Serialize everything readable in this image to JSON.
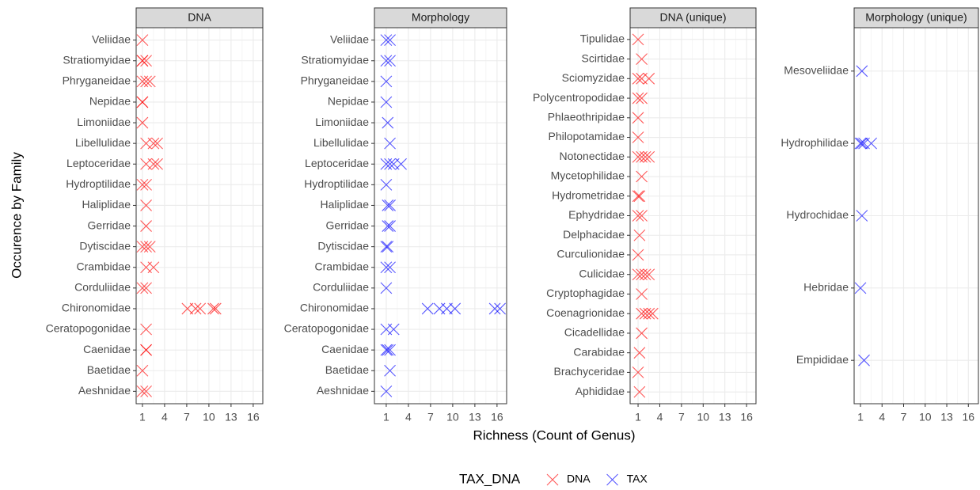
{
  "figure": {
    "xlabel": "Richness (Count of Genus)",
    "ylabel": "Occurence by Family",
    "legend_title": "TAX_DNA"
  },
  "chart_data": [
    {
      "type": "scatter",
      "title": "DNA",
      "xlim": [
        0.15,
        17.3
      ],
      "xticks": [
        1,
        4,
        7,
        10,
        13,
        16
      ],
      "grid": true,
      "categories": [
        "Veliidae",
        "Stratiomyidae",
        "Phryganeidae",
        "Nepidae",
        "Limoniidae",
        "Libellulidae",
        "Leptoceridae",
        "Hydroptilidae",
        "Haliplidae",
        "Gerridae",
        "Dytiscidae",
        "Crambidae",
        "Corduliidae",
        "Chironomidae",
        "Ceratopogonidae",
        "Caenidae",
        "Baetidae",
        "Aeshnidae"
      ],
      "series": [
        {
          "name": "DNA",
          "color": "#ff0000",
          "values": [
            [
              1
            ],
            [
              1,
              1,
              1.5
            ],
            [
              1,
              1.5,
              2
            ],
            [
              1,
              1
            ],
            [
              1
            ],
            [
              1.5,
              2.5,
              3
            ],
            [
              1.5,
              2.5,
              3
            ],
            [
              1,
              1.5
            ],
            [
              1.5
            ],
            [
              1.5
            ],
            [
              1,
              1.5,
              2
            ],
            [
              1.5,
              2.5
            ],
            [
              1,
              1.5
            ],
            [
              7.1,
              8.2,
              8.8,
              10.6,
              10.9
            ],
            [
              1.5
            ],
            [
              1.5,
              1.5
            ],
            [
              1
            ],
            [
              1,
              1.5
            ]
          ]
        }
      ]
    },
    {
      "type": "scatter",
      "title": "Morphology",
      "xlim": [
        -0.6,
        17.3
      ],
      "xticks": [
        1,
        4,
        7,
        10,
        13,
        16
      ],
      "grid": true,
      "categories": [
        "Veliidae",
        "Stratiomyidae",
        "Phryganeidae",
        "Nepidae",
        "Limoniidae",
        "Libellulidae",
        "Leptoceridae",
        "Hydroptilidae",
        "Haliplidae",
        "Gerridae",
        "Dytiscidae",
        "Crambidae",
        "Corduliidae",
        "Chironomidae",
        "Ceratopogonidae",
        "Caenidae",
        "Baetidae",
        "Aeshnidae"
      ],
      "series": [
        {
          "name": "TAX",
          "color": "#0000ff",
          "values": [
            [
              1,
              1.5
            ],
            [
              1,
              1.5
            ],
            [
              1
            ],
            [
              1
            ],
            [
              1.2
            ],
            [
              1.5
            ],
            [
              1,
              1.5,
              2,
              3
            ],
            [
              1
            ],
            [
              1.2,
              1.5
            ],
            [
              1.2,
              1.5
            ],
            [
              1,
              1.2
            ],
            [
              1,
              1.5
            ],
            [
              1
            ],
            [
              6.6,
              8.2,
              9.2,
              10.3,
              15.7,
              16.4
            ],
            [
              1,
              2
            ],
            [
              1,
              1.2,
              1.5
            ],
            [
              1.5
            ],
            [
              1
            ]
          ]
        }
      ]
    },
    {
      "type": "scatter",
      "title": "DNA (unique)",
      "xlim": [
        -0.1,
        17.3
      ],
      "xticks": [
        1,
        4,
        7,
        10,
        13,
        16
      ],
      "grid": true,
      "categories": [
        "Tipulidae",
        "Scirtidae",
        "Sciomyzidae",
        "Polycentropodidae",
        "Phlaeothripidae",
        "Philopotamidae",
        "Notonectidae",
        "Mycetophilidae",
        "Hydrometridae",
        "Ephydridae",
        "Delphacidae",
        "Curculionidae",
        "Culicidae",
        "Cryptophagidae",
        "Coenagrionidae",
        "Cicadellidae",
        "Carabidae",
        "Brachyceridae",
        "Aphididae"
      ],
      "series": [
        {
          "name": "DNA",
          "color": "#ff0000",
          "values": [
            [
              1
            ],
            [
              1.5
            ],
            [
              1,
              1.5,
              2.5
            ],
            [
              1,
              1.5
            ],
            [
              1
            ],
            [
              1
            ],
            [
              1,
              1.5,
              2,
              2.5
            ],
            [
              1.5
            ],
            [
              1,
              1.2
            ],
            [
              1,
              1.5
            ],
            [
              1.2
            ],
            [
              1
            ],
            [
              1,
              1.5,
              2,
              2.5
            ],
            [
              1.5
            ],
            [
              1.5,
              2,
              2.5,
              3
            ],
            [
              1.5
            ],
            [
              1.2
            ],
            [
              1
            ],
            [
              1.2
            ]
          ]
        }
      ]
    },
    {
      "type": "scatter",
      "title": "Morphology (unique)",
      "xlim": [
        0.12,
        17.4
      ],
      "xticks": [
        1,
        4,
        7,
        10,
        13,
        16
      ],
      "grid": true,
      "categories": [
        "Mesoveliidae",
        "Hydrophilidae",
        "Hydrochidae",
        "Hebridae",
        "Empididae"
      ],
      "series": [
        {
          "name": "TAX",
          "color": "#0000ff",
          "values": [
            [
              1.2
            ],
            [
              1,
              1.2,
              1.5,
              2.5
            ],
            [
              1.2
            ],
            [
              1
            ],
            [
              1.5
            ]
          ]
        }
      ]
    }
  ]
}
